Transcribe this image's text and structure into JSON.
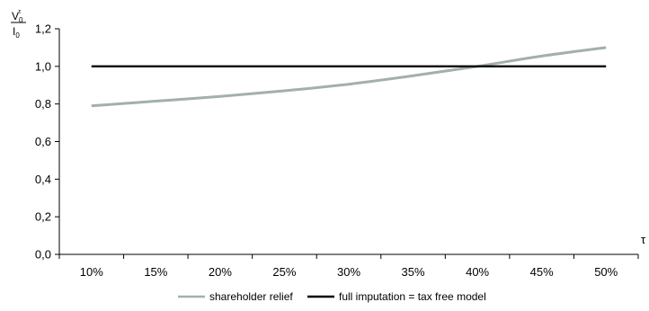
{
  "chart_data": {
    "type": "line",
    "title": "",
    "x": [
      "10%",
      "15%",
      "20%",
      "25%",
      "30%",
      "35%",
      "40%",
      "45%",
      "50%"
    ],
    "ylim": [
      0,
      1.2
    ],
    "yticks": [
      "0,0",
      "0,2",
      "0,4",
      "0,6",
      "0,8",
      "1,0",
      "1,2"
    ],
    "ylabel": {
      "numerator_base": "V",
      "numerator_sub": "0",
      "numerator_sup": "τ",
      "denominator_base": "I",
      "denominator_sub": "0"
    },
    "xlabel": "τ",
    "grid": false,
    "legend_position": "bottom",
    "series": [
      {
        "name": "shareholder relief",
        "color": "#a2b0ab",
        "values": [
          0.79,
          0.815,
          0.84,
          0.87,
          0.905,
          0.95,
          1.0,
          1.055,
          1.1
        ]
      },
      {
        "name": "full imputation = tax free model",
        "color": "#000000",
        "values": [
          1.0,
          1.0,
          1.0,
          1.0,
          1.0,
          1.0,
          1.0,
          1.0,
          1.0
        ]
      }
    ]
  }
}
